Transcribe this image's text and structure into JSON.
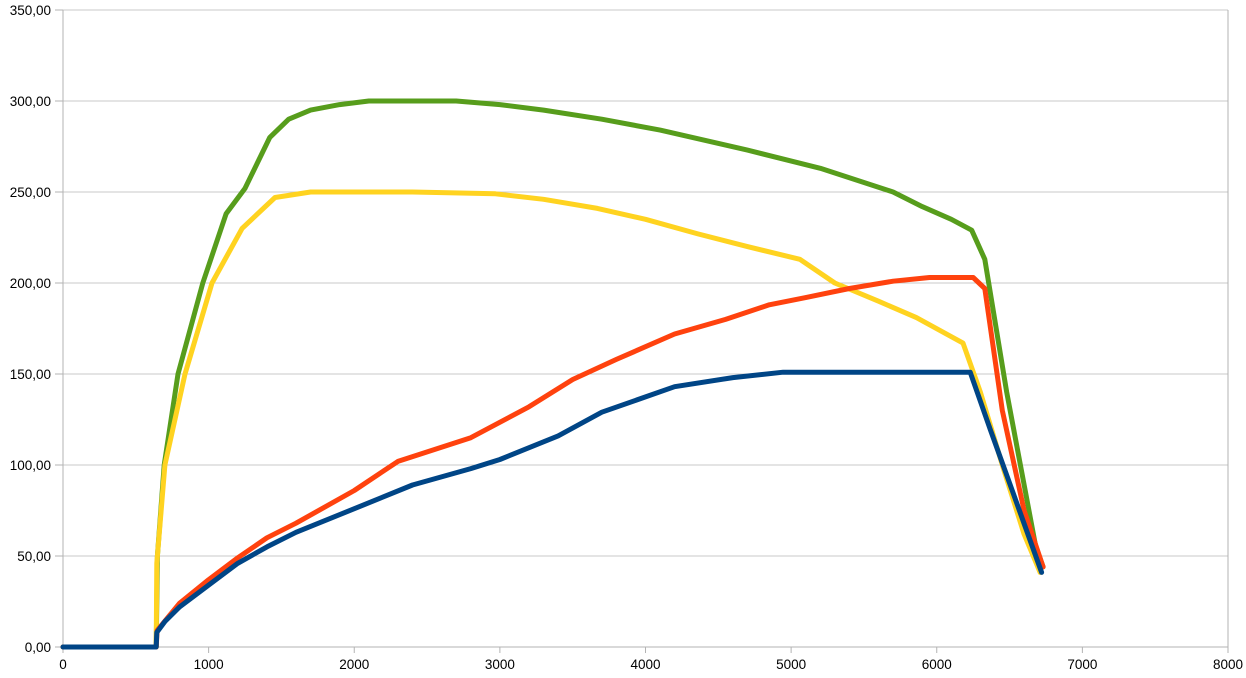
{
  "page": {
    "background_color": "#FFFFFF",
    "title": "",
    "legend": "none"
  },
  "chart_data": {
    "type": "line",
    "title": "",
    "subtitle": "",
    "xlabel": "",
    "ylabel": "",
    "xlim": [
      0,
      8000
    ],
    "ylim": [
      0,
      350
    ],
    "grid": "horizontal",
    "legend_position": "none",
    "x_ticks": [
      0,
      1000,
      2000,
      3000,
      4000,
      5000,
      6000,
      7000,
      8000
    ],
    "x_tick_labels": [
      "0",
      "1000",
      "2000",
      "3000",
      "4000",
      "5000",
      "6000",
      "7000",
      "8000"
    ],
    "y_ticks": [
      0,
      50,
      100,
      150,
      200,
      250,
      300,
      350
    ],
    "y_tick_labels": [
      "0,00",
      "50,00",
      "100,00",
      "150,00",
      "200,00",
      "250,00",
      "300,00",
      "350,00"
    ],
    "axis_color": "#B3B3B3",
    "gridline_color": "#C8C8C8",
    "label_color": "#000000",
    "line_width": 5,
    "series": [
      {
        "name": "green-series",
        "color": "#579D1C",
        "points": [
          [
            0,
            0
          ],
          [
            640,
            0
          ],
          [
            648,
            50
          ],
          [
            695,
            100
          ],
          [
            790,
            150
          ],
          [
            960,
            200
          ],
          [
            1120,
            238
          ],
          [
            1250,
            252
          ],
          [
            1420,
            280
          ],
          [
            1550,
            290
          ],
          [
            1700,
            295
          ],
          [
            1900,
            298
          ],
          [
            2100,
            300
          ],
          [
            2400,
            300
          ],
          [
            2700,
            300
          ],
          [
            3000,
            298
          ],
          [
            3300,
            295
          ],
          [
            3700,
            290
          ],
          [
            4100,
            284
          ],
          [
            4700,
            273
          ],
          [
            5200,
            263
          ],
          [
            5700,
            250
          ],
          [
            5900,
            242
          ],
          [
            6100,
            235
          ],
          [
            6240,
            229
          ],
          [
            6330,
            213
          ],
          [
            6480,
            140
          ],
          [
            6680,
            55
          ],
          [
            6730,
            44
          ]
        ]
      },
      {
        "name": "yellow-series",
        "color": "#FFD320",
        "points": [
          [
            0,
            0
          ],
          [
            640,
            0
          ],
          [
            644,
            46
          ],
          [
            700,
            100
          ],
          [
            838,
            150
          ],
          [
            1023,
            200
          ],
          [
            1230,
            230
          ],
          [
            1456,
            247
          ],
          [
            1700,
            250
          ],
          [
            2400,
            250
          ],
          [
            2970,
            249
          ],
          [
            3300,
            246
          ],
          [
            3670,
            241
          ],
          [
            4000,
            235
          ],
          [
            4360,
            227
          ],
          [
            4700,
            220
          ],
          [
            5060,
            213
          ],
          [
            5300,
            200
          ],
          [
            5600,
            190
          ],
          [
            5860,
            181
          ],
          [
            6020,
            174
          ],
          [
            6180,
            167
          ],
          [
            6300,
            140
          ],
          [
            6450,
            100
          ],
          [
            6600,
            62
          ],
          [
            6710,
            41
          ]
        ]
      },
      {
        "name": "red-series",
        "color": "#FF420E",
        "points": [
          [
            0,
            0
          ],
          [
            640,
            0
          ],
          [
            646,
            9
          ],
          [
            800,
            24
          ],
          [
            1000,
            37
          ],
          [
            1200,
            49
          ],
          [
            1400,
            60
          ],
          [
            1600,
            68
          ],
          [
            2000,
            86
          ],
          [
            2300,
            102
          ],
          [
            2800,
            115
          ],
          [
            3200,
            132
          ],
          [
            3500,
            147
          ],
          [
            3800,
            158
          ],
          [
            4200,
            172
          ],
          [
            4550,
            180
          ],
          [
            4850,
            188
          ],
          [
            5100,
            192
          ],
          [
            5400,
            197
          ],
          [
            5700,
            201
          ],
          [
            5950,
            203
          ],
          [
            6250,
            203
          ],
          [
            6330,
            197
          ],
          [
            6450,
            130
          ],
          [
            6600,
            75
          ],
          [
            6730,
            44
          ]
        ]
      },
      {
        "name": "blue-series",
        "color": "#004586",
        "points": [
          [
            0,
            0
          ],
          [
            640,
            0
          ],
          [
            644,
            8
          ],
          [
            700,
            14
          ],
          [
            800,
            22
          ],
          [
            1000,
            34
          ],
          [
            1200,
            46
          ],
          [
            1400,
            55
          ],
          [
            1600,
            63
          ],
          [
            2000,
            76
          ],
          [
            2400,
            89
          ],
          [
            2800,
            98
          ],
          [
            3000,
            103
          ],
          [
            3400,
            116
          ],
          [
            3700,
            129
          ],
          [
            4200,
            143
          ],
          [
            4600,
            148
          ],
          [
            4945,
            151
          ],
          [
            5400,
            151
          ],
          [
            6000,
            151
          ],
          [
            6230,
            151
          ],
          [
            6370,
            119
          ],
          [
            6500,
            90
          ],
          [
            6720,
            41
          ]
        ]
      }
    ]
  }
}
